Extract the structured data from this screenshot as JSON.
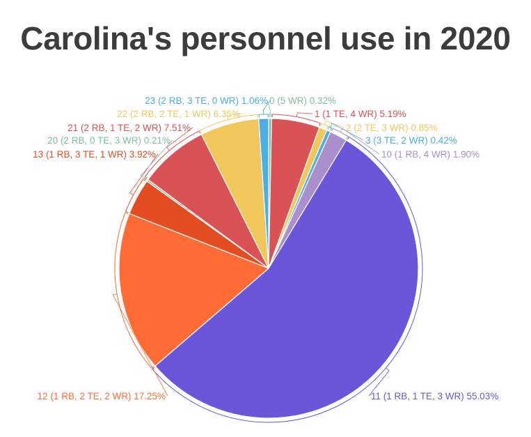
{
  "chart_data": {
    "type": "pie",
    "title": "Carolina's personnel use in 2020",
    "slices": [
      {
        "label": "0 (5 WR) 0.32%",
        "value": 0.32,
        "color": "#7fbf9b"
      },
      {
        "label": "1 (1 TE, 4 WR) 5.19%",
        "value": 5.19,
        "color": "#d95256"
      },
      {
        "label": "2 (2 TE, 3 WR) 0.85%",
        "value": 0.85,
        "color": "#f0c75a"
      },
      {
        "label": "3 (3 TE, 2 WR) 0.42%",
        "value": 0.42,
        "color": "#4aaee0"
      },
      {
        "label": "10 (1 RB, 4 WR) 1.90%",
        "value": 1.9,
        "color": "#a98fcd"
      },
      {
        "label": "11  (1 RB, 1 TE, 3 WR) 55.03%",
        "value": 55.03,
        "color": "#6b55d8"
      },
      {
        "label": "12 (1 RB, 2 TE, 2 WR) 17.25%",
        "value": 17.25,
        "color": "#ff6b35"
      },
      {
        "label": "13 (1 RB, 3 TE, 1 WR) 3.92%",
        "value": 3.92,
        "color": "#e44c22"
      },
      {
        "label": "20 (2 RB, 0 TE, 3 WR) 0.21%",
        "value": 0.21,
        "color": "#7fbf9b"
      },
      {
        "label": "21 (2 RB, 1 TE, 2 WR) 7.51%",
        "value": 7.51,
        "color": "#d95256"
      },
      {
        "label": "22 (2 RB, 2 TE, 1 WR) 6.35%",
        "value": 6.35,
        "color": "#f0c75a"
      },
      {
        "label": "23 (2 RB, 3 TE, 0 WR) 1.06%",
        "value": 1.06,
        "color": "#4aaee0"
      }
    ],
    "legend": "none"
  }
}
